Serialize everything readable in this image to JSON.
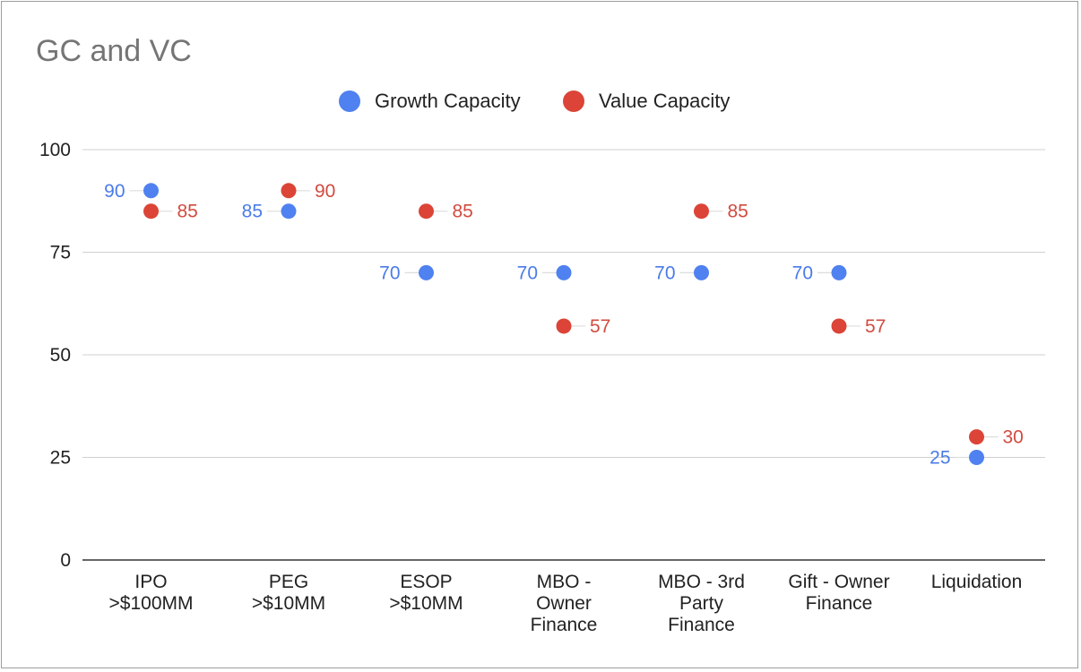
{
  "chart_data": {
    "type": "scatter",
    "title": "GC and VC",
    "xlabel": "",
    "ylabel": "",
    "ylim": [
      0,
      100
    ],
    "yticks": [
      0,
      25,
      50,
      75,
      100
    ],
    "grid": true,
    "legend_position": "top-center",
    "categories": [
      [
        "IPO",
        ">$100MM"
      ],
      [
        "PEG",
        ">$10MM"
      ],
      [
        "ESOP",
        ">$10MM"
      ],
      [
        "MBO -",
        "Owner",
        "Finance"
      ],
      [
        "MBO - 3rd",
        "Party",
        "Finance"
      ],
      [
        "Gift - Owner",
        "Finance"
      ],
      [
        "Liquidation"
      ]
    ],
    "series": [
      {
        "name": "Growth Capacity",
        "color": "#4f81f0",
        "label_color": "#4a7be8",
        "values": [
          90,
          85,
          70,
          70,
          70,
          70,
          25
        ]
      },
      {
        "name": "Value Capacity",
        "color": "#db4437",
        "label_color": "#d14b3f",
        "values": [
          85,
          90,
          85,
          57,
          85,
          57,
          30
        ]
      }
    ]
  }
}
